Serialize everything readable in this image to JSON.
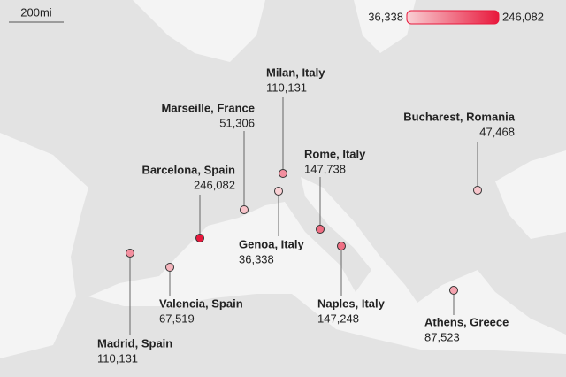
{
  "scale_bar": "200mi",
  "legend": {
    "min": {
      "value": 36338,
      "label": "36,338"
    },
    "max": {
      "value": 246082,
      "label": "246,082"
    },
    "colors": [
      "#f9d0d4",
      "#e8183c"
    ]
  },
  "points": [
    {
      "name": "Milan, Italy",
      "value": 110131,
      "value_label": "110,131"
    },
    {
      "name": "Marseille, France",
      "value": 51306,
      "value_label": "51,306"
    },
    {
      "name": "Bucharest, Romania",
      "value": 47468,
      "value_label": "47,468"
    },
    {
      "name": "Barcelona, Spain",
      "value": 246082,
      "value_label": "246,082"
    },
    {
      "name": "Rome, Italy",
      "value": 147738,
      "value_label": "147,738"
    },
    {
      "name": "Genoa, Italy",
      "value": 36338,
      "value_label": "36,338"
    },
    {
      "name": "Naples, Italy",
      "value": 147248,
      "value_label": "147,248"
    },
    {
      "name": "Athens, Greece",
      "value": 87523,
      "value_label": "87,523"
    },
    {
      "name": "Valencia, Spain",
      "value": 67519,
      "value_label": "67,519"
    },
    {
      "name": "Madrid, Spain",
      "value": 110131,
      "value_label": "110,131"
    }
  ]
}
